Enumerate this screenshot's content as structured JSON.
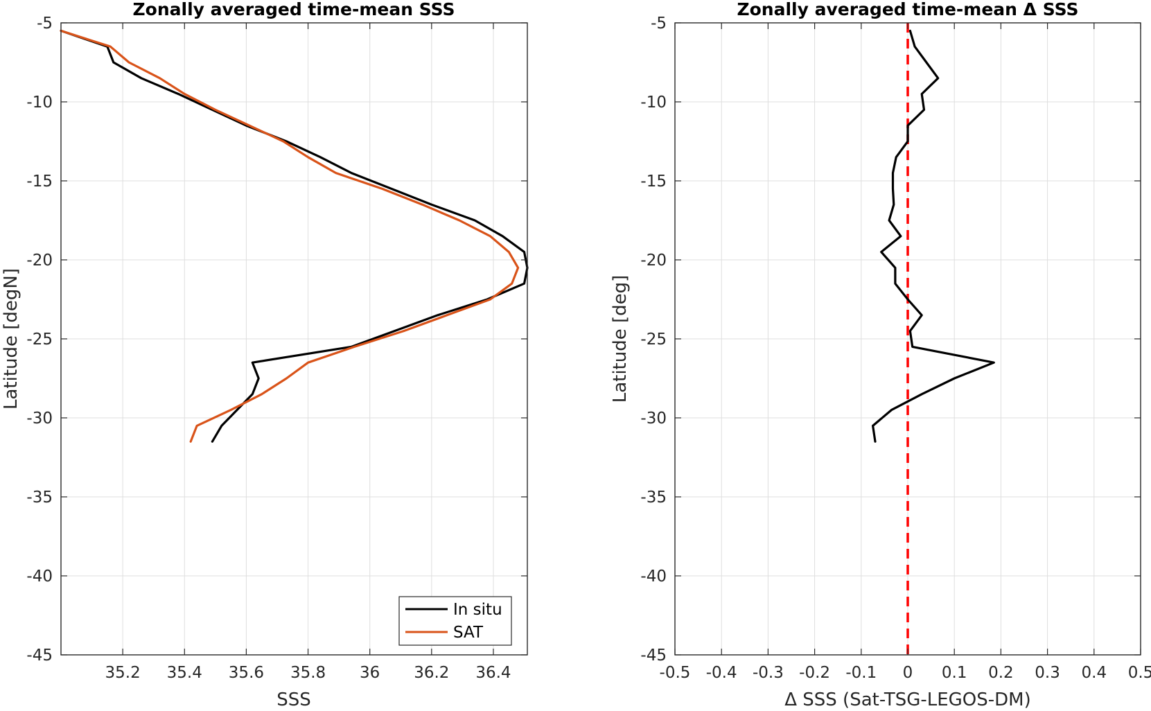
{
  "chart_data": [
    {
      "type": "line",
      "title": "Zonally averaged time-mean SSS",
      "xlabel": "SSS",
      "ylabel": "Latitude [degN]",
      "xlim": [
        35.0,
        36.51
      ],
      "ylim": [
        -45,
        -5
      ],
      "xticks": [
        35.2,
        35.4,
        35.6,
        35.8,
        36,
        36.2,
        36.4
      ],
      "xtick_labels": [
        "35.2",
        "35.4",
        "35.6",
        "35.8",
        "36",
        "36.2",
        "36.4"
      ],
      "yticks": [
        -5,
        -10,
        -15,
        -20,
        -25,
        -30,
        -35,
        -40,
        -45
      ],
      "ytick_labels": [
        "-5",
        "-10",
        "-15",
        "-20",
        "-25",
        "-30",
        "-35",
        "-40",
        "-45"
      ],
      "grid": true,
      "legend_position": "bottom-right",
      "series": [
        {
          "name": "In situ",
          "color": "#000000",
          "lat": [
            -5.5,
            -6.5,
            -7.5,
            -8.5,
            -9.5,
            -10.5,
            -11.5,
            -12.5,
            -13.5,
            -14.5,
            -15.5,
            -16.5,
            -17.5,
            -18.5,
            -19.5,
            -20.5,
            -21.5,
            -22.5,
            -23.5,
            -24.5,
            -25.5,
            -26.5,
            -27.5,
            -28.5,
            -29.5,
            -30.5,
            -31.5
          ],
          "values": [
            35.0,
            35.15,
            35.17,
            35.26,
            35.38,
            35.49,
            35.6,
            35.73,
            35.84,
            35.94,
            36.07,
            36.2,
            36.34,
            36.43,
            36.5,
            36.51,
            36.5,
            36.38,
            36.22,
            36.08,
            35.94,
            35.62,
            35.64,
            35.62,
            35.57,
            35.52,
            35.49
          ]
        },
        {
          "name": "SAT",
          "color": "#D95319",
          "lat": [
            -5.5,
            -6.5,
            -7.5,
            -8.5,
            -9.5,
            -10.5,
            -11.5,
            -12.5,
            -13.5,
            -14.5,
            -15.5,
            -16.5,
            -17.5,
            -18.5,
            -19.5,
            -20.5,
            -21.5,
            -22.5,
            -23.5,
            -24.5,
            -25.5,
            -26.5,
            -27.5,
            -28.5,
            -29.5,
            -30.5,
            -31.5
          ],
          "values": [
            35.0,
            35.16,
            35.22,
            35.32,
            35.4,
            35.5,
            35.61,
            35.72,
            35.8,
            35.89,
            36.04,
            36.17,
            36.29,
            36.39,
            36.45,
            36.48,
            36.46,
            36.39,
            36.25,
            36.11,
            35.95,
            35.8,
            35.73,
            35.65,
            35.55,
            35.44,
            35.42
          ]
        }
      ]
    },
    {
      "type": "line",
      "title": "Zonally averaged time-mean Δ SSS",
      "xlabel": "Δ SSS (Sat-TSG-LEGOS-DM)",
      "ylabel": "Latitude [deg]",
      "xlim": [
        -0.5,
        0.5
      ],
      "ylim": [
        -45,
        -5
      ],
      "xticks": [
        -0.5,
        -0.4,
        -0.3,
        -0.2,
        -0.1,
        0,
        0.1,
        0.2,
        0.3,
        0.4,
        0.5
      ],
      "xtick_labels": [
        "-0.5",
        "-0.4",
        "-0.3",
        "-0.2",
        "-0.1",
        "0",
        "0.1",
        "0.2",
        "0.3",
        "0.4",
        "0.5"
      ],
      "yticks": [
        -5,
        -10,
        -15,
        -20,
        -25,
        -30,
        -35,
        -40,
        -45
      ],
      "ytick_labels": [
        "-5",
        "-10",
        "-15",
        "-20",
        "-25",
        "-30",
        "-35",
        "-40",
        "-45"
      ],
      "grid": true,
      "reference_line": {
        "x": 0,
        "color": "#ff0000",
        "style": "dashed"
      },
      "series": [
        {
          "color": "#000000",
          "lat": [
            -5.5,
            -6.5,
            -7.5,
            -8.5,
            -9.5,
            -10.5,
            -11.5,
            -12.5,
            -13.5,
            -14.5,
            -15.5,
            -16.5,
            -17.5,
            -18.5,
            -19.5,
            -20.5,
            -21.5,
            -22.5,
            -23.5,
            -24.5,
            -25.5,
            -26.5,
            -27.5,
            -28.5,
            -29.5,
            -30.5,
            -31.5
          ],
          "values": [
            0.005,
            0.015,
            0.04,
            0.065,
            0.03,
            0.035,
            0.0,
            0.0,
            -0.025,
            -0.032,
            -0.032,
            -0.03,
            -0.04,
            -0.015,
            -0.057,
            -0.027,
            -0.027,
            0.0,
            0.03,
            0.005,
            0.01,
            0.185,
            0.1,
            0.03,
            -0.035,
            -0.075,
            -0.07
          ]
        }
      ]
    }
  ]
}
